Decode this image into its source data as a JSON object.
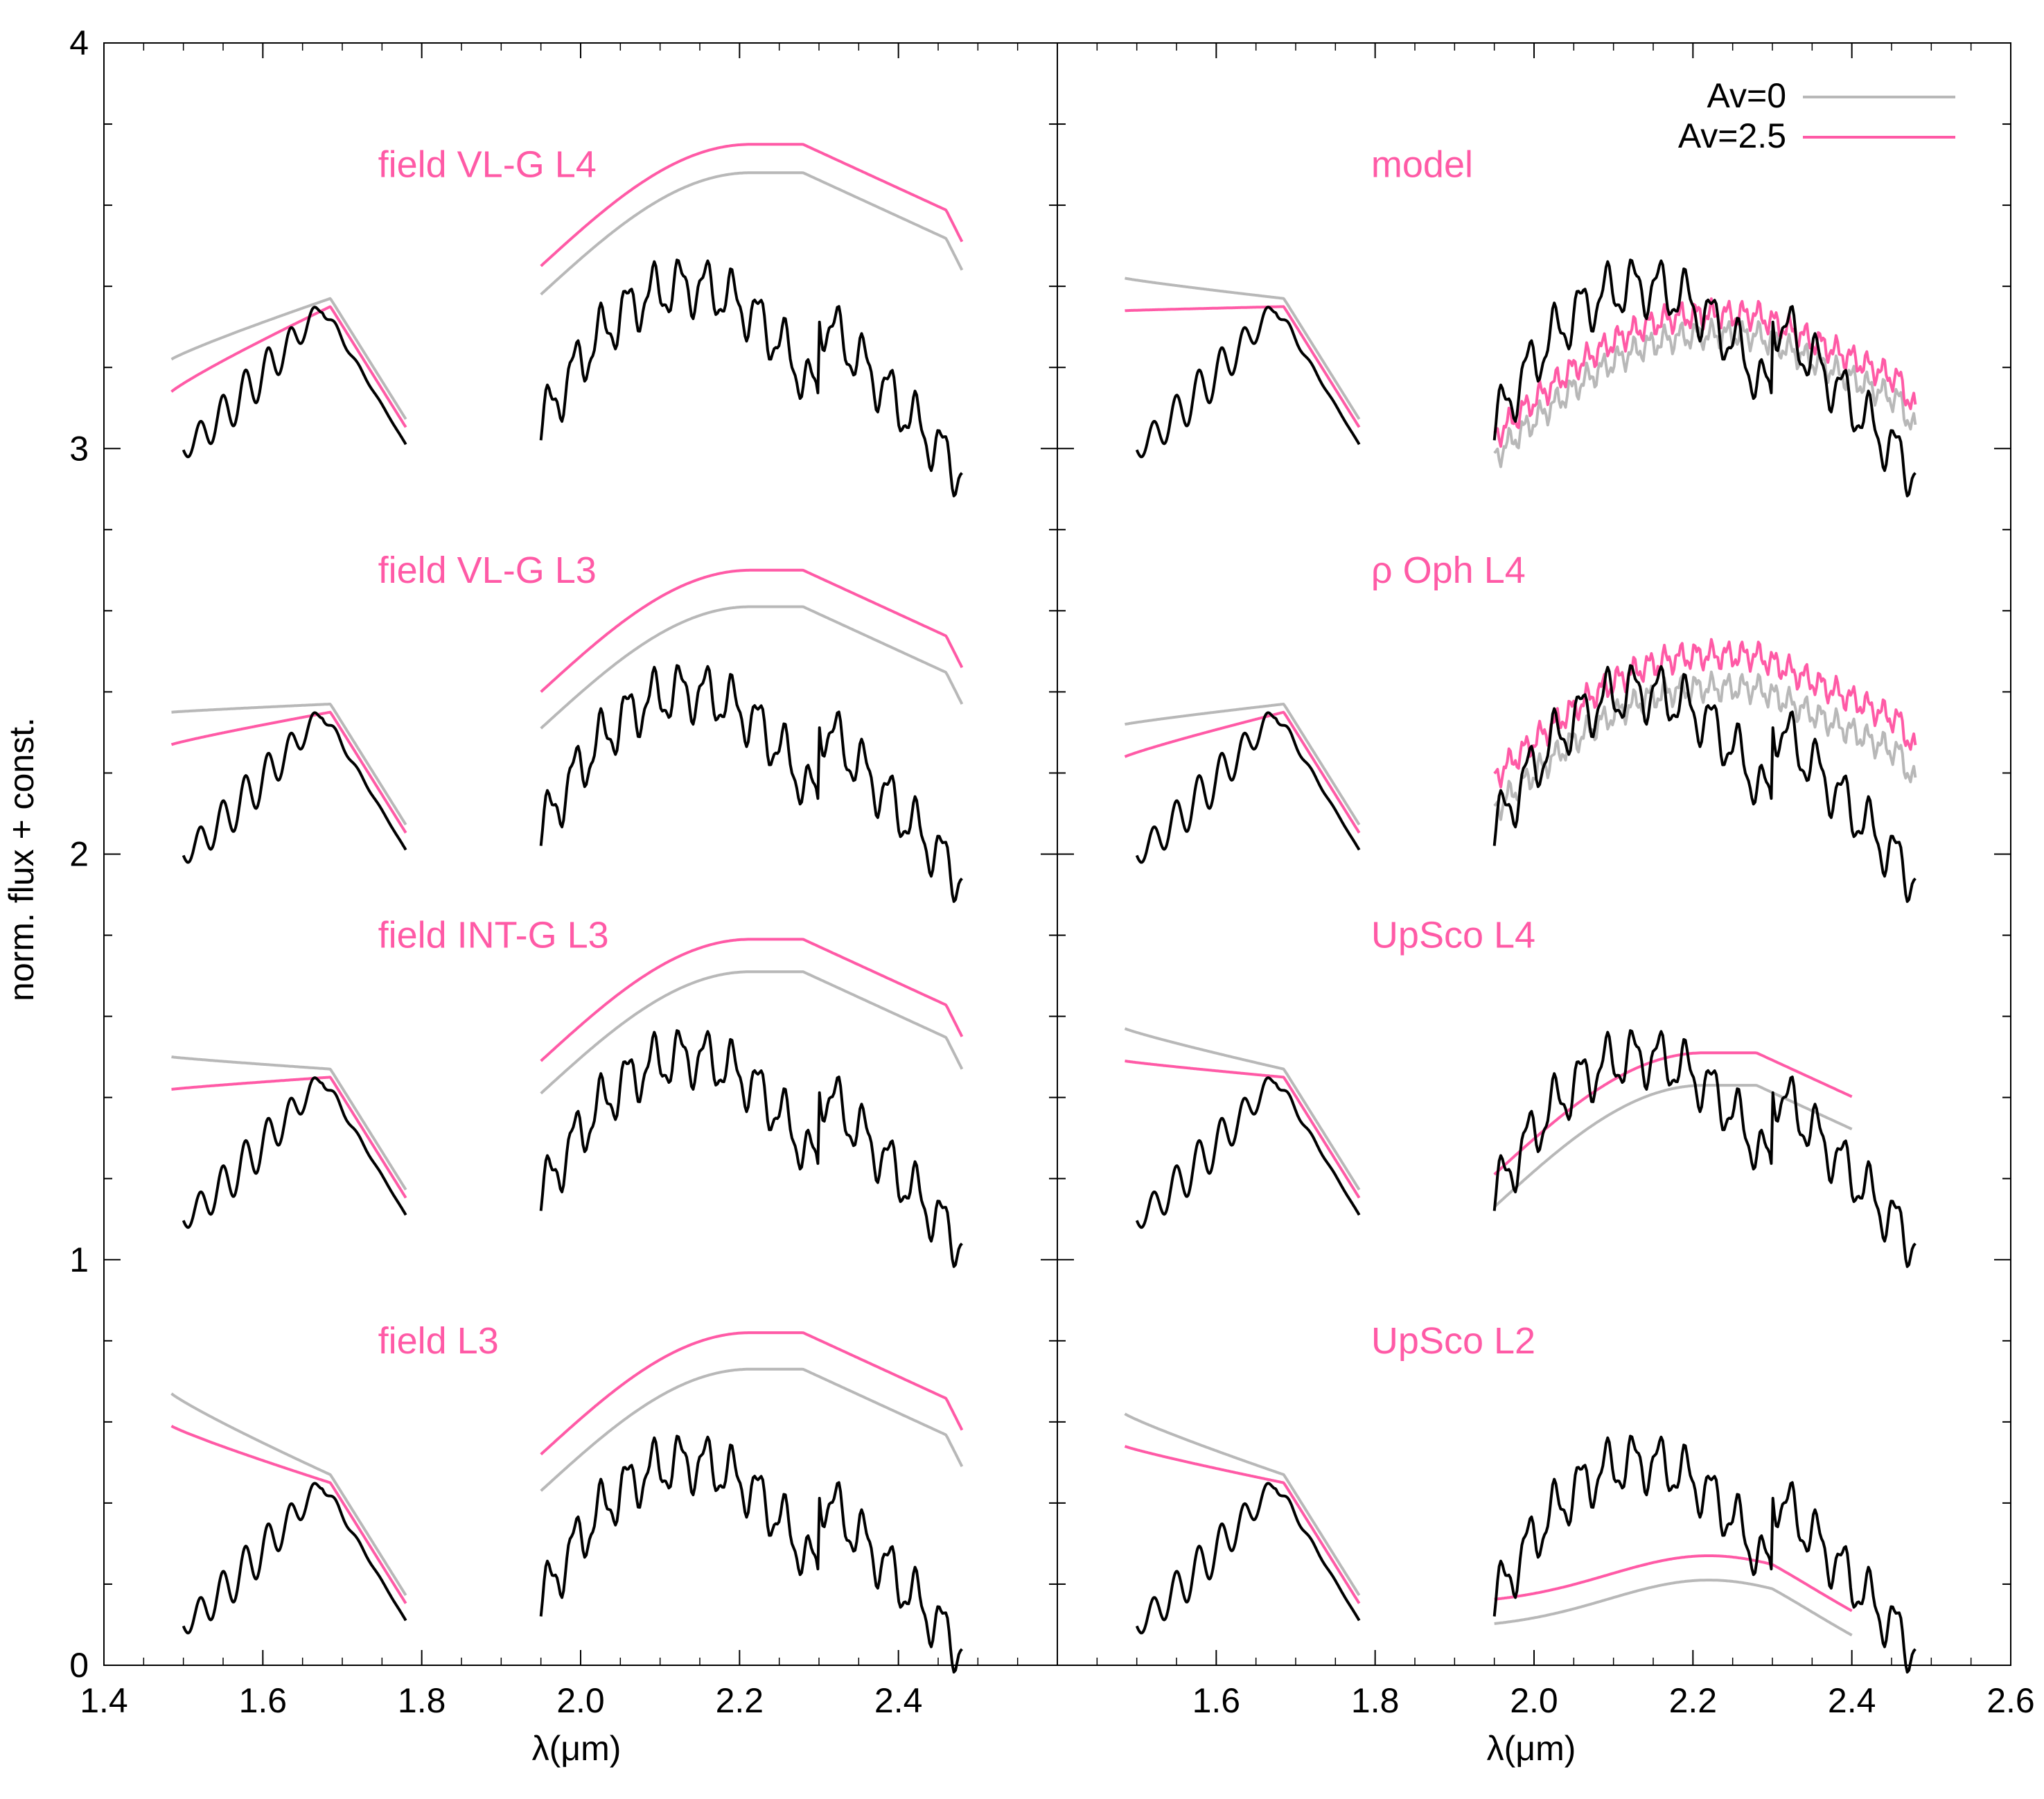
{
  "chart_data": {
    "type": "line",
    "ylabel": "norm. flux + const.",
    "ylim": [
      0,
      4
    ],
    "y_ticks": [
      "0",
      "1",
      "2",
      "3",
      "4"
    ],
    "colors": {
      "observed": "#000000",
      "av0": "#b8b8b8",
      "av25": "#ff5aa6"
    },
    "legend": [
      {
        "label": "Av=0",
        "color": "#b8b8b8"
      },
      {
        "label": "Av=2.5",
        "color": "#ff5aa6"
      }
    ],
    "panels": [
      {
        "xlabel": "λ(μm)",
        "xlim": [
          1.4,
          2.6
        ],
        "x_ticks": [
          "1.4",
          "1.6",
          "1.8",
          "2.0",
          "2.2",
          "2.4"
        ],
        "series": [
          {
            "label": "field VL-G L4",
            "offset": 3.0,
            "av0_shift": 0.55,
            "av25_shift": 0.62,
            "mode": "smooth",
            "h_start": 3.2
          },
          {
            "label": "field VL-G L3",
            "offset": 2.0,
            "av0_shift": 0.48,
            "av25_shift": 0.57,
            "mode": "smooth",
            "h_start": 2.33
          },
          {
            "label": "field INT-G L3",
            "offset": 1.1,
            "av0_shift": 0.48,
            "av25_shift": 0.56,
            "mode": "smooth",
            "h_start": 1.48
          },
          {
            "label": "field L3",
            "offset": 0.1,
            "av0_shift": 0.5,
            "av25_shift": 0.59,
            "mode": "smooth",
            "h_start": 0.65
          }
        ]
      },
      {
        "xlabel": "λ(μm)",
        "xlim": [
          1.4,
          2.6
        ],
        "x_ticks": [
          "1.6",
          "1.8",
          "2.0",
          "2.2",
          "2.4",
          "2.6"
        ],
        "series": [
          {
            "label": "model",
            "offset": 3.0,
            "av0_shift": 0.15,
            "av25_shift": 0.2,
            "mode": "noisy",
            "h_start": 3.4
          },
          {
            "label": "ρ Oph L4",
            "offset": 2.0,
            "av0_shift": 0.28,
            "av25_shift": 0.36,
            "mode": "noisy",
            "h_start": 2.3
          },
          {
            "label": "UpSco L4",
            "offset": 1.1,
            "av0_shift": 0.2,
            "av25_shift": 0.28,
            "mode": "smooth",
            "h_start": 1.55
          },
          {
            "label": "UpSco L2",
            "offset": 0.1,
            "av0_shift": 0.12,
            "av25_shift": 0.18,
            "mode": "flat",
            "h_start": 0.6
          }
        ]
      }
    ]
  }
}
